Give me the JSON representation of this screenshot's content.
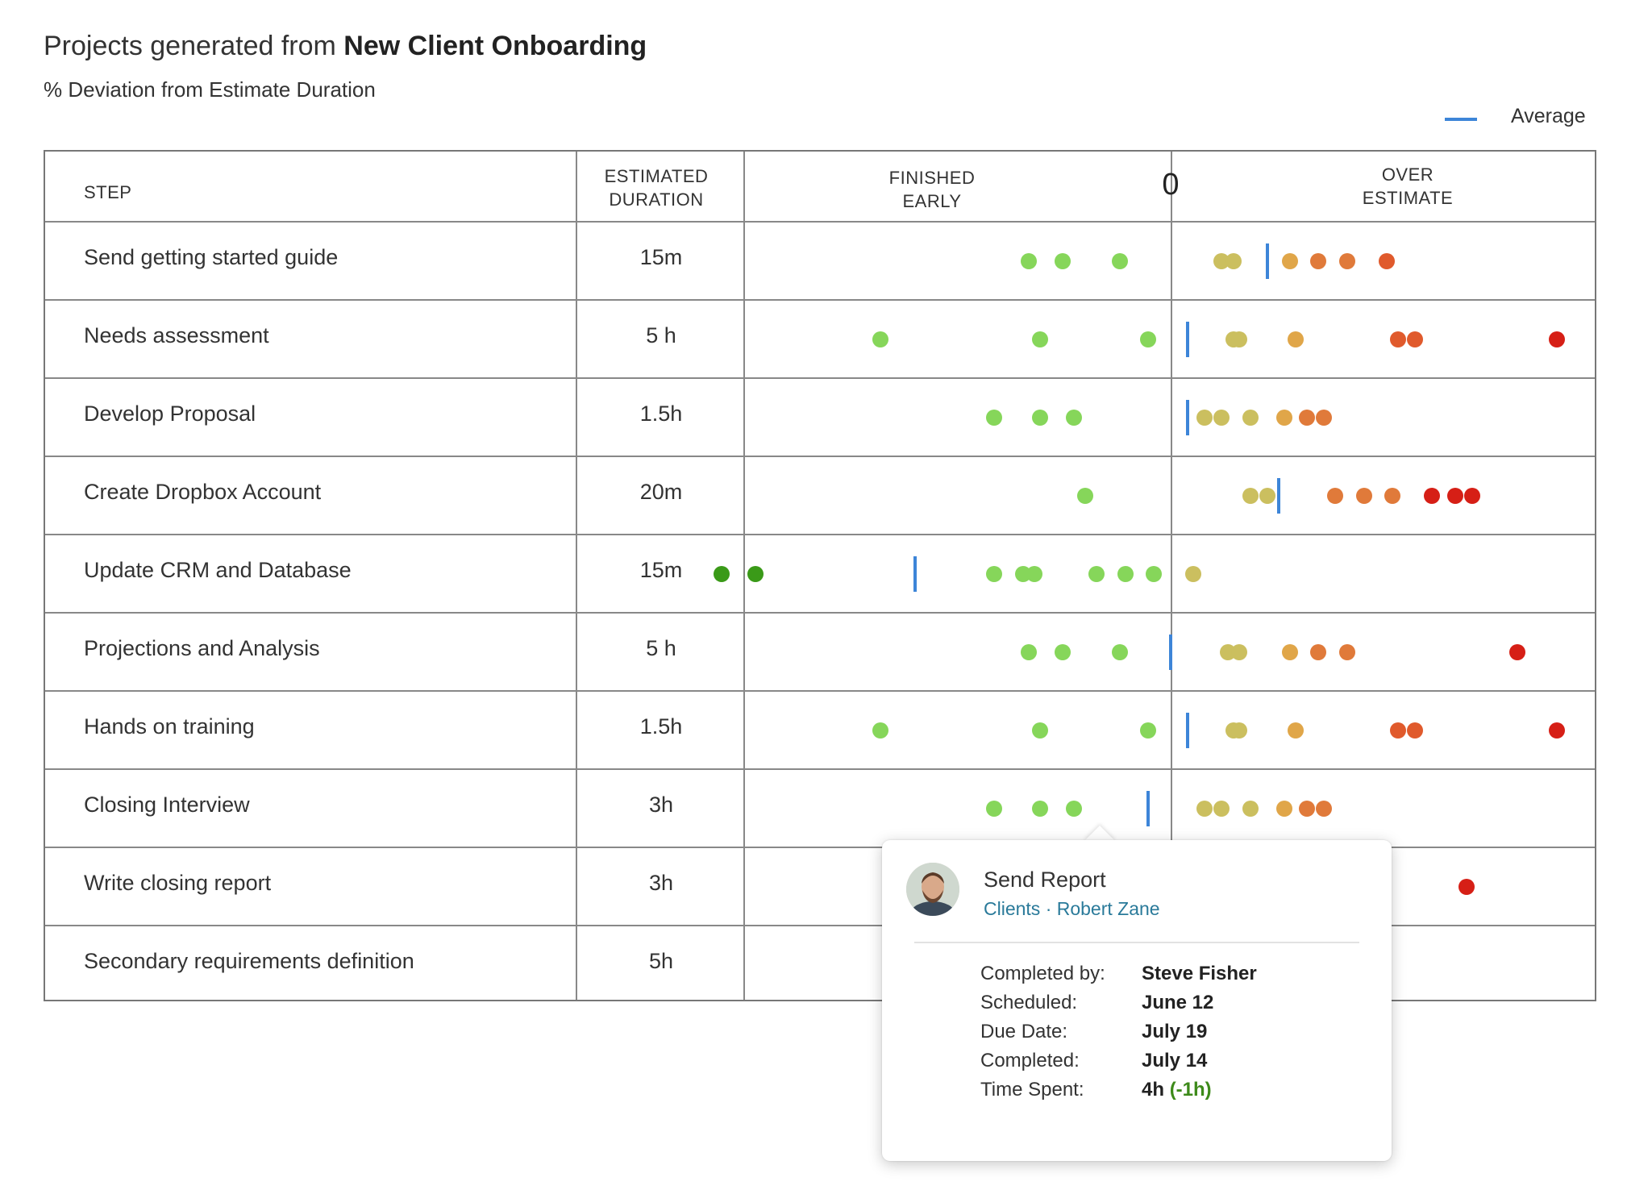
{
  "header": {
    "title_prefix": "Projects generated from ",
    "title_bold": "New Client Onboarding",
    "subtitle": "% Deviation from Estimate Duration"
  },
  "legend": {
    "label": "Average",
    "color": "#3d85d8"
  },
  "table": {
    "headers": {
      "step": "STEP",
      "estimated_line1": "ESTIMATED",
      "estimated_line2": "DURATION",
      "early_line1": "FINISHED",
      "early_line2": "EARLY",
      "zero": "0",
      "over_line1": "OVER",
      "over_line2": "ESTIMATE"
    },
    "rows": [
      {
        "step": "Send getting started guide",
        "duration": "15m"
      },
      {
        "step": "Needs assessment",
        "duration": "5 h"
      },
      {
        "step": "Develop Proposal",
        "duration": "1.5h"
      },
      {
        "step": "Create Dropbox Account",
        "duration": "20m"
      },
      {
        "step": "Update CRM and Database",
        "duration": "15m"
      },
      {
        "step": "Projections and Analysis",
        "duration": "5 h"
      },
      {
        "step": "Hands on training",
        "duration": "1.5h"
      },
      {
        "step": "Closing Interview",
        "duration": "3h"
      },
      {
        "step": "Write closing report",
        "duration": "3h"
      },
      {
        "step": "Secondary requirements definition",
        "duration": "5h"
      }
    ]
  },
  "chart_data": {
    "type": "scatter",
    "title": "% Deviation from Estimate Duration",
    "xlabel": "",
    "ylabel": "",
    "zero_label": "0",
    "categories": [
      "Send getting started guide",
      "Needs assessment",
      "Develop Proposal",
      "Create Dropbox Account",
      "Update CRM and Database",
      "Projections and Analysis",
      "Hands on training",
      "Closing Interview",
      "Write closing report",
      "Secondary requirements definition"
    ],
    "xlim": [
      -100,
      100
    ],
    "colors": {
      "dark_green": "#3a9a18",
      "green": "#86d65a",
      "olive": "#cbbf5f",
      "light_orange": "#e0a649",
      "orange": "#e07a3a",
      "red_orange": "#e05a2c",
      "red": "#d61f16"
    },
    "rows": [
      {
        "average": 17,
        "points": [
          {
            "x": -25,
            "c": "green"
          },
          {
            "x": -19,
            "c": "green"
          },
          {
            "x": -9,
            "c": "green"
          },
          {
            "x": 9,
            "c": "olive"
          },
          {
            "x": 11,
            "c": "olive"
          },
          {
            "x": 21,
            "c": "light_orange"
          },
          {
            "x": 26,
            "c": "orange"
          },
          {
            "x": 31,
            "c": "orange"
          },
          {
            "x": 38,
            "c": "red_orange"
          }
        ]
      },
      {
        "average": 3,
        "points": [
          {
            "x": -51,
            "c": "green"
          },
          {
            "x": -23,
            "c": "green"
          },
          {
            "x": -4,
            "c": "green"
          },
          {
            "x": 11,
            "c": "olive"
          },
          {
            "x": 12,
            "c": "olive"
          },
          {
            "x": 22,
            "c": "light_orange"
          },
          {
            "x": 40,
            "c": "red_orange"
          },
          {
            "x": 43,
            "c": "red_orange"
          },
          {
            "x": 68,
            "c": "red"
          }
        ]
      },
      {
        "average": 3,
        "points": [
          {
            "x": -31,
            "c": "green"
          },
          {
            "x": -23,
            "c": "green"
          },
          {
            "x": -17,
            "c": "green"
          },
          {
            "x": 6,
            "c": "olive"
          },
          {
            "x": 9,
            "c": "olive"
          },
          {
            "x": 14,
            "c": "olive"
          },
          {
            "x": 20,
            "c": "light_orange"
          },
          {
            "x": 24,
            "c": "orange"
          },
          {
            "x": 27,
            "c": "orange"
          }
        ]
      },
      {
        "average": 19,
        "points": [
          {
            "x": -15,
            "c": "green"
          },
          {
            "x": 14,
            "c": "olive"
          },
          {
            "x": 17,
            "c": "olive"
          },
          {
            "x": 29,
            "c": "orange"
          },
          {
            "x": 34,
            "c": "orange"
          },
          {
            "x": 39,
            "c": "orange"
          },
          {
            "x": 46,
            "c": "red"
          },
          {
            "x": 50,
            "c": "red"
          },
          {
            "x": 53,
            "c": "red"
          }
        ]
      },
      {
        "average": -45,
        "points": [
          {
            "x": -79,
            "c": "dark_green"
          },
          {
            "x": -73,
            "c": "dark_green"
          },
          {
            "x": -31,
            "c": "green"
          },
          {
            "x": -26,
            "c": "green"
          },
          {
            "x": -24,
            "c": "green"
          },
          {
            "x": -13,
            "c": "green"
          },
          {
            "x": -8,
            "c": "green"
          },
          {
            "x": -3,
            "c": "green"
          },
          {
            "x": 4,
            "c": "olive"
          }
        ]
      },
      {
        "average": 0,
        "points": [
          {
            "x": -25,
            "c": "green"
          },
          {
            "x": -19,
            "c": "green"
          },
          {
            "x": -9,
            "c": "green"
          },
          {
            "x": 10,
            "c": "olive"
          },
          {
            "x": 12,
            "c": "olive"
          },
          {
            "x": 21,
            "c": "light_orange"
          },
          {
            "x": 26,
            "c": "orange"
          },
          {
            "x": 31,
            "c": "orange"
          },
          {
            "x": 61,
            "c": "red"
          }
        ]
      },
      {
        "average": 3,
        "points": [
          {
            "x": -51,
            "c": "green"
          },
          {
            "x": -23,
            "c": "green"
          },
          {
            "x": -4,
            "c": "green"
          },
          {
            "x": 11,
            "c": "olive"
          },
          {
            "x": 12,
            "c": "olive"
          },
          {
            "x": 22,
            "c": "light_orange"
          },
          {
            "x": 40,
            "c": "red_orange"
          },
          {
            "x": 43,
            "c": "red_orange"
          },
          {
            "x": 68,
            "c": "red"
          }
        ]
      },
      {
        "average": -4,
        "points": [
          {
            "x": -31,
            "c": "green"
          },
          {
            "x": -23,
            "c": "green"
          },
          {
            "x": -17,
            "c": "green"
          },
          {
            "x": 6,
            "c": "olive"
          },
          {
            "x": 9,
            "c": "olive"
          },
          {
            "x": 14,
            "c": "olive"
          },
          {
            "x": 20,
            "c": "light_orange"
          },
          {
            "x": 24,
            "c": "orange"
          },
          {
            "x": 27,
            "c": "orange"
          }
        ]
      },
      {
        "average": null,
        "points": [
          {
            "x": 52,
            "c": "red"
          }
        ]
      },
      {
        "average": null,
        "points": []
      }
    ]
  },
  "tooltip": {
    "title": "Send Report",
    "subtitle": "Clients · Robert Zane",
    "avatar_icon": "person-avatar-icon",
    "fields": [
      {
        "key": "Completed by:",
        "value": "Steve Fisher"
      },
      {
        "key": "Scheduled:",
        "value": "June 12"
      },
      {
        "key": "Due Date:",
        "value": "July 19"
      },
      {
        "key": "Completed:",
        "value": "July 14"
      },
      {
        "key": "Time Spent:",
        "value": "4h"
      }
    ],
    "time_delta": "(-1h)"
  }
}
